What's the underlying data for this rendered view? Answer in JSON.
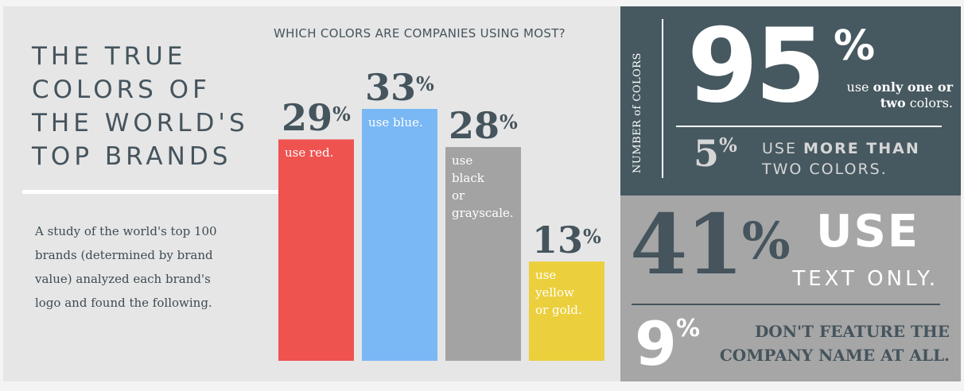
{
  "title": "THE TRUE\nCOLORS OF\nTHE WORLD'S\nTOP BRANDS",
  "intro": "A study of the world's top 100 brands (determined by brand value) analyzed each brand's logo and found the following.",
  "chart_data": {
    "type": "bar",
    "title": "WHICH COLORS ARE COMPANIES USING MOST?",
    "xlabel": "",
    "ylabel": "",
    "unit": "%",
    "ylim": [
      0,
      33
    ],
    "categories": [
      "use red.",
      "use blue.",
      "use\nblack\nor\ngrayscale.",
      "use\nyellow\nor gold."
    ],
    "values": [
      29,
      33,
      28,
      13
    ],
    "colors": [
      "#ef5350",
      "#7ab8f5",
      "#a3a3a3",
      "#ebcf3c"
    ],
    "grid": false,
    "legend": "none"
  },
  "side_stats": {
    "vertical_label": "NUMBER of COLORS",
    "stat95": {
      "value": "95",
      "unit": "%",
      "pre": "use ",
      "bold": "only one or two",
      "post": " colors."
    },
    "stat5": {
      "value": "5",
      "unit": "%",
      "pre": "USE ",
      "bold": "MORE THAN",
      "post": " TWO COLORS."
    },
    "stat41": {
      "value": "41",
      "unit": "%",
      "emph": "USE",
      "text": "TEXT ONLY."
    },
    "stat9": {
      "value": "9",
      "unit": "%",
      "text": "DON'T FEATURE THE\nCOMPANY NAME AT ALL."
    }
  },
  "colors": {
    "background": "#e6e6e6",
    "slate": "#465860",
    "grey_panel": "#a6a6a6",
    "text": "#45545d"
  }
}
